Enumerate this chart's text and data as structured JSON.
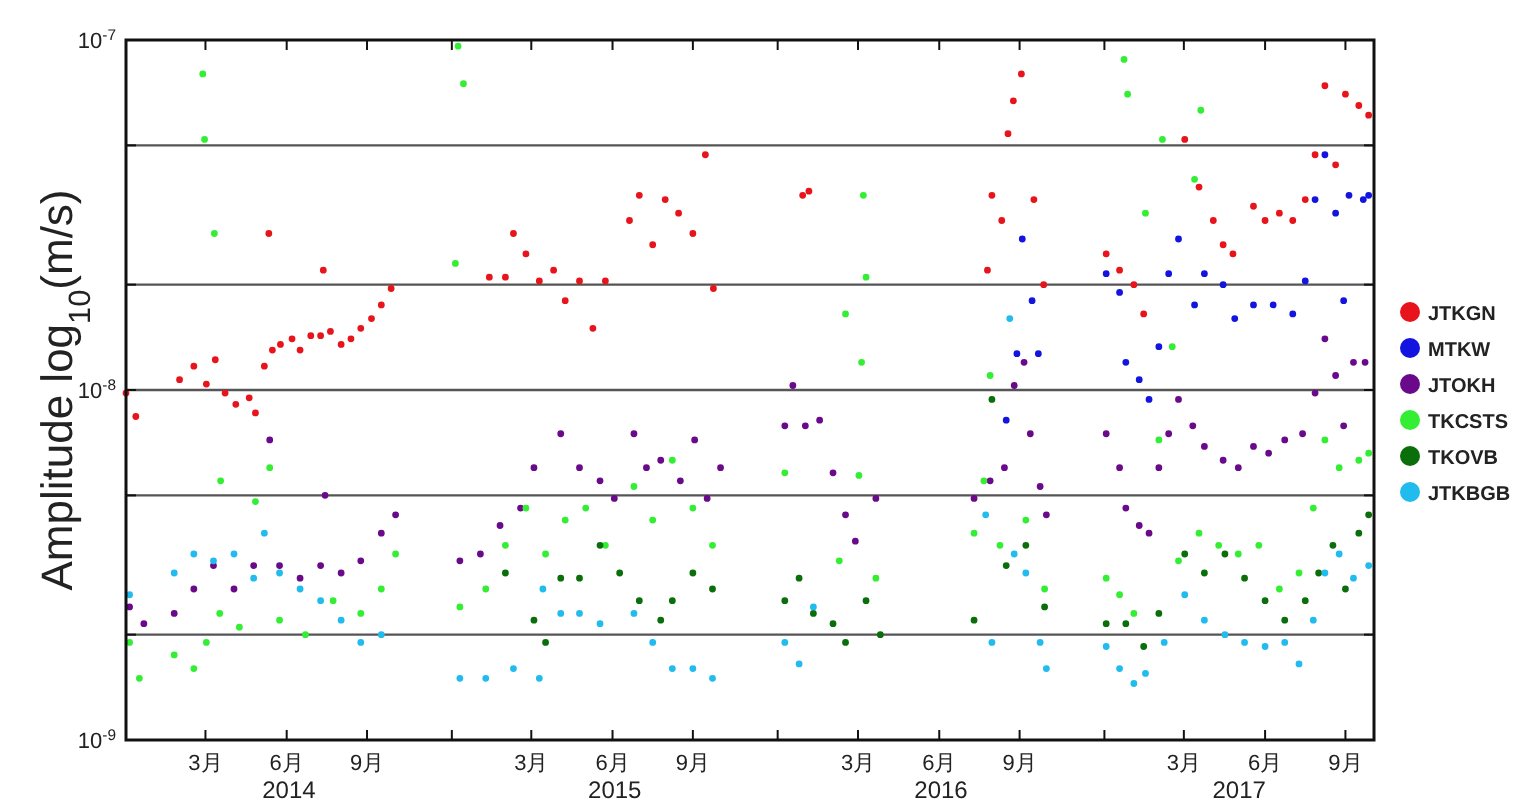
{
  "chart_data": {
    "type": "scatter",
    "ylabel": "Amplitude  log$_{10}$(m/s)",
    "log": true,
    "grid": "y",
    "legend": "right",
    "marker": "circle",
    "xlim": [
      "2014-01-01",
      "2017-10-30"
    ],
    "xticks": [
      {
        "value": "2014-03-31",
        "label": "3月"
      },
      {
        "value": "2014-06-30",
        "label": "6月"
      },
      {
        "value": "2014-09-28",
        "label": "9月"
      },
      {
        "value": "2015-01-01",
        "label": null
      },
      {
        "value": "2015-03-31",
        "label": "3月"
      },
      {
        "value": "2015-06-30",
        "label": "6月"
      },
      {
        "value": "2015-09-28",
        "label": "9月"
      },
      {
        "value": "2016-01-01",
        "label": null
      },
      {
        "value": "2016-03-31",
        "label": "3月"
      },
      {
        "value": "2016-06-30",
        "label": "6月"
      },
      {
        "value": "2016-09-28",
        "label": "9月"
      },
      {
        "value": "2017-01-01",
        "label": null
      },
      {
        "value": "2017-03-31",
        "label": "3月"
      },
      {
        "value": "2017-06-30",
        "label": "6月"
      },
      {
        "value": "2017-09-28",
        "label": "9月"
      }
    ],
    "ylim": [
      1e-09,
      1e-07
    ],
    "yticks": [
      {
        "value": 1e-09,
        "label": "10$^{-9}$"
      },
      {
        "value": 2e-09,
        "label": null
      },
      {
        "value": 5e-09,
        "label": null
      },
      {
        "value": 1e-08,
        "label": "10$^{-8}$"
      },
      {
        "value": 2e-08,
        "label": null
      },
      {
        "value": 5e-08,
        "label": null
      },
      {
        "value": 1e-07,
        "label": "10$^{-7}$"
      }
    ],
    "annotations": [
      "2014",
      "2015",
      "2016",
      "2017"
    ],
    "series": [
      {
        "name": "JTKGN",
        "color": "#e8141c",
        "x": [
          "2014-01-01",
          "2014-01-12",
          "2014-03-02",
          "2014-03-18",
          "2014-04-01",
          "2014-04-11",
          "2014-04-22",
          "2014-05-04",
          "2014-05-19",
          "2014-05-26",
          "2014-06-05",
          "2014-06-10",
          "2014-06-14",
          "2014-06-23",
          "2014-07-06",
          "2014-07-15",
          "2014-07-27",
          "2014-08-07",
          "2014-08-10",
          "2014-08-18",
          "2014-08-30",
          "2014-09-10",
          "2014-09-21",
          "2014-10-03",
          "2014-10-14",
          "2014-10-25",
          "2015-02-12",
          "2015-03-02",
          "2015-03-11",
          "2015-03-25",
          "2015-04-09",
          "2015-04-25",
          "2015-05-08",
          "2015-05-24",
          "2015-06-08",
          "2015-06-22",
          "2015-07-19",
          "2015-07-30",
          "2015-08-14",
          "2015-08-28",
          "2015-09-12",
          "2015-09-28",
          "2015-10-12",
          "2015-10-21",
          "2016-01-29",
          "2016-02-05",
          "2016-08-23",
          "2016-08-28",
          "2016-09-08",
          "2016-09-15",
          "2016-09-21",
          "2016-09-30",
          "2016-10-14",
          "2016-10-25",
          "2017-01-03",
          "2017-01-18",
          "2017-02-03",
          "2017-02-14",
          "2017-04-01",
          "2017-04-17",
          "2017-05-03",
          "2017-05-14",
          "2017-05-25",
          "2017-06-17",
          "2017-06-30",
          "2017-07-16",
          "2017-07-31",
          "2017-08-14",
          "2017-08-25",
          "2017-09-05",
          "2017-09-17",
          "2017-09-28",
          "2017-10-13",
          "2017-10-24"
        ],
        "values": [
          9.8e-09,
          8.4e-09,
          1.07e-08,
          1.17e-08,
          1.04e-08,
          1.22e-08,
          9.8e-09,
          9.1e-09,
          9.5e-09,
          8.6e-09,
          1.17e-08,
          2.8e-08,
          1.3e-08,
          1.35e-08,
          1.4e-08,
          1.3e-08,
          1.43e-08,
          1.43e-08,
          2.2e-08,
          1.47e-08,
          1.35e-08,
          1.4e-08,
          1.5e-08,
          1.6e-08,
          1.75e-08,
          1.95e-08,
          2.1e-08,
          2.1e-08,
          2.8e-08,
          2.45e-08,
          2.05e-08,
          2.2e-08,
          1.8e-08,
          2.05e-08,
          1.5e-08,
          2.05e-08,
          3.05e-08,
          3.6e-08,
          2.6e-08,
          3.5e-08,
          3.2e-08,
          2.8e-08,
          4.7e-08,
          1.95e-08,
          3.6e-08,
          3.7e-08,
          2.2e-08,
          3.6e-08,
          3.05e-08,
          5.4e-08,
          6.7e-08,
          8e-08,
          3.5e-08,
          2e-08,
          2.45e-08,
          2.2e-08,
          2e-08,
          1.65e-08,
          5.2e-08,
          3.8e-08,
          3.05e-08,
          2.6e-08,
          2.45e-08,
          3.35e-08,
          3.05e-08,
          3.2e-08,
          3.05e-08,
          3.5e-08,
          4.7e-08,
          7.4e-08,
          4.4e-08,
          7e-08,
          6.5e-08,
          6.1e-08
        ]
      },
      {
        "name": "MTKW",
        "color": "#1414e0",
        "x": [
          "2016-09-13",
          "2016-09-25",
          "2016-10-01",
          "2016-10-12",
          "2016-10-19",
          "2017-01-03",
          "2017-01-18",
          "2017-01-25",
          "2017-02-09",
          "2017-02-20",
          "2017-03-03",
          "2017-03-14",
          "2017-03-25",
          "2017-04-12",
          "2017-04-23",
          "2017-05-14",
          "2017-05-27",
          "2017-06-17",
          "2017-07-09",
          "2017-07-31",
          "2017-08-14",
          "2017-08-25",
          "2017-09-05",
          "2017-09-17",
          "2017-09-26",
          "2017-10-02",
          "2017-10-18",
          "2017-10-24"
        ],
        "values": [
          8.2e-09,
          1.27e-08,
          2.7e-08,
          1.8e-08,
          1.27e-08,
          2.15e-08,
          1.9e-08,
          1.2e-08,
          1.07e-08,
          9.4e-09,
          1.33e-08,
          2.15e-08,
          2.7e-08,
          1.75e-08,
          2.15e-08,
          2e-08,
          1.6e-08,
          1.75e-08,
          1.75e-08,
          1.65e-08,
          2.05e-08,
          3.5e-08,
          4.7e-08,
          3.2e-08,
          1.8e-08,
          3.6e-08,
          3.5e-08,
          3.6e-08
        ]
      },
      {
        "name": "JTOKH",
        "color": "#6a0a8a",
        "x": [
          "2014-01-05",
          "2014-01-21",
          "2014-02-24",
          "2014-03-18",
          "2014-04-09",
          "2014-05-02",
          "2014-05-24",
          "2014-06-11",
          "2014-06-22",
          "2014-07-15",
          "2014-08-07",
          "2014-08-12",
          "2014-08-30",
          "2014-09-21",
          "2014-10-14",
          "2014-10-30",
          "2015-01-10",
          "2015-02-02",
          "2015-02-24",
          "2015-03-19",
          "2015-04-03",
          "2015-05-03",
          "2015-05-24",
          "2015-06-16",
          "2015-07-02",
          "2015-07-24",
          "2015-08-07",
          "2015-08-23",
          "2015-09-14",
          "2015-09-30",
          "2015-10-14",
          "2015-10-29",
          "2016-01-09",
          "2016-01-18",
          "2016-02-01",
          "2016-02-17",
          "2016-03-03",
          "2016-03-17",
          "2016-03-28",
          "2016-04-20",
          "2016-08-08",
          "2016-08-26",
          "2016-09-11",
          "2016-09-22",
          "2016-10-03",
          "2016-10-10",
          "2016-10-21",
          "2016-10-28",
          "2017-01-03",
          "2017-01-18",
          "2017-01-25",
          "2017-02-09",
          "2017-02-20",
          "2017-03-03",
          "2017-03-14",
          "2017-03-25",
          "2017-04-10",
          "2017-04-23",
          "2017-05-14",
          "2017-05-31",
          "2017-06-17",
          "2017-07-04",
          "2017-07-22",
          "2017-08-11",
          "2017-08-25",
          "2017-09-05",
          "2017-09-17",
          "2017-09-26",
          "2017-10-07",
          "2017-10-20"
        ],
        "values": [
          2.4e-09,
          2.15e-09,
          2.3e-09,
          2.7e-09,
          3.15e-09,
          2.7e-09,
          3.15e-09,
          7.2e-09,
          3.15e-09,
          2.9e-09,
          3.15e-09,
          5e-09,
          3e-09,
          3.25e-09,
          3.9e-09,
          4.4e-09,
          3.25e-09,
          3.4e-09,
          4.1e-09,
          4.6e-09,
          6e-09,
          7.5e-09,
          6e-09,
          5.5e-09,
          4.9e-09,
          7.5e-09,
          6e-09,
          6.3e-09,
          5.5e-09,
          7.2e-09,
          4.9e-09,
          6e-09,
          7.9e-09,
          1.03e-08,
          7.9e-09,
          8.2e-09,
          5.8e-09,
          4.4e-09,
          3.7e-09,
          4.9e-09,
          4.9e-09,
          5.5e-09,
          6e-09,
          1.03e-08,
          1.2e-08,
          7.5e-09,
          5.3e-09,
          4.4e-09,
          7.5e-09,
          6e-09,
          4.6e-09,
          4.1e-09,
          3.9e-09,
          6e-09,
          7.5e-09,
          9.4e-09,
          7.9e-09,
          6.9e-09,
          6.3e-09,
          6e-09,
          6.9e-09,
          6.6e-09,
          7.2e-09,
          7.5e-09,
          9.8e-09,
          1.4e-08,
          1.1e-08,
          7.9e-09,
          1.2e-08,
          1.2e-08
        ]
      },
      {
        "name": "TKCSTS",
        "color": "#33ee33",
        "x": [
          "2014-01-05",
          "2014-01-16",
          "2014-02-24",
          "2014-03-18",
          "2014-03-28",
          "2014-03-30",
          "2014-04-01",
          "2014-04-10",
          "2014-04-16",
          "2014-04-17",
          "2014-05-08",
          "2014-05-26",
          "2014-06-11",
          "2014-06-22",
          "2014-07-21",
          "2014-08-21",
          "2014-09-21",
          "2014-10-14",
          "2014-10-30",
          "2015-01-05",
          "2015-01-08",
          "2015-01-10",
          "2015-01-14",
          "2015-02-08",
          "2015-03-02",
          "2015-03-25",
          "2015-04-16",
          "2015-05-08",
          "2015-05-31",
          "2015-06-22",
          "2015-07-24",
          "2015-08-14",
          "2015-09-05",
          "2015-09-28",
          "2015-10-20",
          "2016-01-09",
          "2016-03-10",
          "2016-03-17",
          "2016-04-01",
          "2016-04-04",
          "2016-04-06",
          "2016-04-09",
          "2016-04-20",
          "2016-08-08",
          "2016-08-19",
          "2016-08-26",
          "2016-09-06",
          "2016-10-05",
          "2016-10-26",
          "2017-01-03",
          "2017-01-18",
          "2017-01-23",
          "2017-01-27",
          "2017-02-03",
          "2017-02-16",
          "2017-03-03",
          "2017-03-07",
          "2017-03-18",
          "2017-03-25",
          "2017-04-12",
          "2017-04-17",
          "2017-04-19",
          "2017-05-09",
          "2017-05-31",
          "2017-06-23",
          "2017-07-16",
          "2017-08-07",
          "2017-08-23",
          "2017-09-05",
          "2017-09-21",
          "2017-10-13",
          "2017-10-24"
        ],
        "values": [
          1.9e-09,
          1.5e-09,
          1.75e-09,
          1.6e-09,
          8e-08,
          5.2e-08,
          1.9e-09,
          2.8e-08,
          2.3e-09,
          5.5e-09,
          2.1e-09,
          4.8e-09,
          6e-09,
          2.2e-09,
          2e-09,
          2.5e-09,
          2.3e-09,
          2.7e-09,
          3.4e-09,
          2.3e-08,
          9.6e-08,
          2.4e-09,
          7.5e-08,
          2.7e-09,
          3.6e-09,
          4.6e-09,
          3.4e-09,
          4.25e-09,
          4.6e-09,
          3.6e-09,
          5.3e-09,
          4.25e-09,
          6.3e-09,
          4.6e-09,
          3.6e-09,
          5.8e-09,
          3.25e-09,
          1.65e-08,
          5.7e-09,
          1.2e-08,
          3.6e-08,
          2.1e-08,
          2.9e-09,
          3.9e-09,
          5.5e-09,
          1.1e-08,
          3.6e-09,
          4.25e-09,
          2.7e-09,
          2.9e-09,
          2.6e-09,
          8.8e-08,
          7e-08,
          2.3e-09,
          3.2e-08,
          7.2e-09,
          5.2e-08,
          1.33e-08,
          3.25e-09,
          4e-08,
          3.9e-09,
          6.3e-08,
          3.6e-09,
          3.4e-09,
          3.6e-09,
          2.7e-09,
          3e-09,
          4.6e-09,
          7.2e-09,
          6e-09,
          6.3e-09,
          6.6e-09
        ]
      },
      {
        "name": "TKOVB",
        "color": "#0a6e0a",
        "x": [
          "2015-03-02",
          "2015-04-03",
          "2015-04-16",
          "2015-05-03",
          "2015-05-24",
          "2015-06-16",
          "2015-07-08",
          "2015-07-30",
          "2015-08-23",
          "2015-09-05",
          "2015-09-28",
          "2015-10-20",
          "2016-01-09",
          "2016-01-25",
          "2016-02-10",
          "2016-03-03",
          "2016-03-17",
          "2016-04-09",
          "2016-04-25",
          "2016-08-08",
          "2016-08-28",
          "2016-09-13",
          "2016-10-05",
          "2016-10-26",
          "2017-01-03",
          "2017-01-25",
          "2017-02-14",
          "2017-03-03",
          "2017-04-01",
          "2017-04-23",
          "2017-05-16",
          "2017-06-07",
          "2017-06-30",
          "2017-07-22",
          "2017-08-14",
          "2017-08-29",
          "2017-09-14",
          "2017-09-28",
          "2017-10-13",
          "2017-10-24"
        ],
        "values": [
          3e-09,
          2.2e-09,
          1.9e-09,
          2.9e-09,
          2.9e-09,
          3.6e-09,
          3e-09,
          2.5e-09,
          2.2e-09,
          2.5e-09,
          3e-09,
          2.7e-09,
          2.5e-09,
          2.9e-09,
          2.3e-09,
          2.15e-09,
          1.9e-09,
          2.5e-09,
          2e-09,
          2.2e-09,
          9.4e-09,
          3.15e-09,
          3.6e-09,
          2.4e-09,
          2.15e-09,
          2.15e-09,
          1.85e-09,
          2.3e-09,
          3.4e-09,
          3e-09,
          3.4e-09,
          2.9e-09,
          2.5e-09,
          2.2e-09,
          2.5e-09,
          3e-09,
          3.6e-09,
          2.7e-09,
          3.9e-09,
          4.4e-09
        ]
      },
      {
        "name": "JTKBGB",
        "color": "#22bbee",
        "x": [
          "2014-01-05",
          "2014-02-24",
          "2014-03-18",
          "2014-04-09",
          "2014-05-02",
          "2014-05-24",
          "2014-06-05",
          "2014-06-22",
          "2014-07-15",
          "2014-08-07",
          "2014-08-30",
          "2014-09-21",
          "2014-10-14",
          "2015-01-10",
          "2015-02-08",
          "2015-03-11",
          "2015-04-09",
          "2015-04-13",
          "2015-05-03",
          "2015-05-24",
          "2015-06-16",
          "2015-07-24",
          "2015-08-14",
          "2015-09-05",
          "2015-09-28",
          "2015-10-20",
          "2016-01-09",
          "2016-01-25",
          "2016-02-10",
          "2016-08-21",
          "2016-08-28",
          "2016-09-17",
          "2016-09-22",
          "2016-10-05",
          "2016-10-21",
          "2016-10-28",
          "2017-01-03",
          "2017-01-18",
          "2017-02-03",
          "2017-02-16",
          "2017-03-09",
          "2017-04-01",
          "2017-04-23",
          "2017-05-16",
          "2017-06-07",
          "2017-06-30",
          "2017-07-22",
          "2017-08-07",
          "2017-08-23",
          "2017-09-05",
          "2017-09-21",
          "2017-10-07",
          "2017-10-24"
        ],
        "values": [
          2.6e-09,
          3e-09,
          3.4e-09,
          3.25e-09,
          3.4e-09,
          2.9e-09,
          3.9e-09,
          3e-09,
          2.7e-09,
          2.5e-09,
          2.2e-09,
          1.9e-09,
          2e-09,
          1.5e-09,
          1.5e-09,
          1.6e-09,
          1.5e-09,
          2.7e-09,
          2.3e-09,
          2.3e-09,
          2.15e-09,
          2.3e-09,
          1.9e-09,
          1.6e-09,
          1.6e-09,
          1.5e-09,
          1.9e-09,
          1.65e-09,
          2.4e-09,
          4.4e-09,
          1.9e-09,
          1.6e-08,
          3.4e-09,
          3e-09,
          1.9e-09,
          1.6e-09,
          1.85e-09,
          1.6e-09,
          1.45e-09,
          1.55e-09,
          1.9e-09,
          2.6e-09,
          2.2e-09,
          2e-09,
          1.9e-09,
          1.85e-09,
          1.9e-09,
          1.65e-09,
          2.2e-09,
          3e-09,
          3.4e-09,
          2.9e-09,
          3.15e-09
        ]
      }
    ]
  }
}
